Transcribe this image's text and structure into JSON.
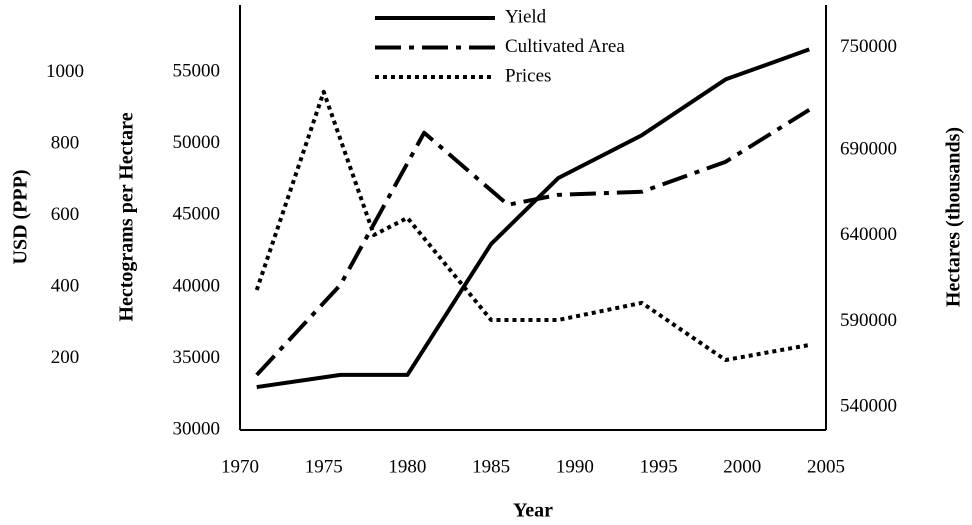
{
  "chart_data": {
    "type": "line",
    "xlabel": "Year",
    "xlim": [
      1970,
      2005
    ],
    "xticks": [
      1970,
      1975,
      1980,
      1985,
      1990,
      1995,
      2000,
      2005
    ],
    "axes": [
      {
        "id": "usd",
        "label": "USD (PPP)",
        "ylim": [
          0,
          1190
        ],
        "yticks": [
          200,
          400,
          600,
          800,
          1000
        ]
      },
      {
        "id": "hg",
        "label": "Hectograms per Hectare",
        "ylim": [
          30000,
          59700
        ],
        "yticks": [
          30000,
          35000,
          40000,
          45000,
          50000,
          55000
        ]
      },
      {
        "id": "ha",
        "label": "Hectares (thousands)",
        "ylim": [
          526500,
          775000
        ],
        "yticks": [
          540000,
          590000,
          640000,
          690000,
          750000
        ]
      }
    ],
    "series": [
      {
        "name": "Yield",
        "axis": "hg",
        "color": "#000000",
        "style": "solid",
        "x": [
          1971,
          1976,
          1980,
          1985,
          1989,
          1994,
          1999,
          2004
        ],
        "values": [
          33000,
          33850,
          33850,
          43000,
          47600,
          50600,
          54500,
          56600
        ]
      },
      {
        "name": "Cultivated Area",
        "axis": "ha",
        "color": "#000000",
        "style": "dashdot",
        "x": [
          1971,
          1976,
          1981,
          1986,
          1989,
          1994,
          1999,
          2004
        ],
        "values": [
          558700,
          611400,
          700300,
          658200,
          664000,
          665800,
          683300,
          713700
        ]
      },
      {
        "name": "Prices",
        "axis": "usd",
        "color": "#000000",
        "style": "dotted",
        "x": [
          1971,
          1975,
          1978,
          1980,
          1985,
          1989,
          1994,
          1999,
          2004
        ],
        "values": [
          392,
          947,
          546,
          594,
          308,
          308,
          356,
          196,
          238
        ]
      }
    ]
  }
}
